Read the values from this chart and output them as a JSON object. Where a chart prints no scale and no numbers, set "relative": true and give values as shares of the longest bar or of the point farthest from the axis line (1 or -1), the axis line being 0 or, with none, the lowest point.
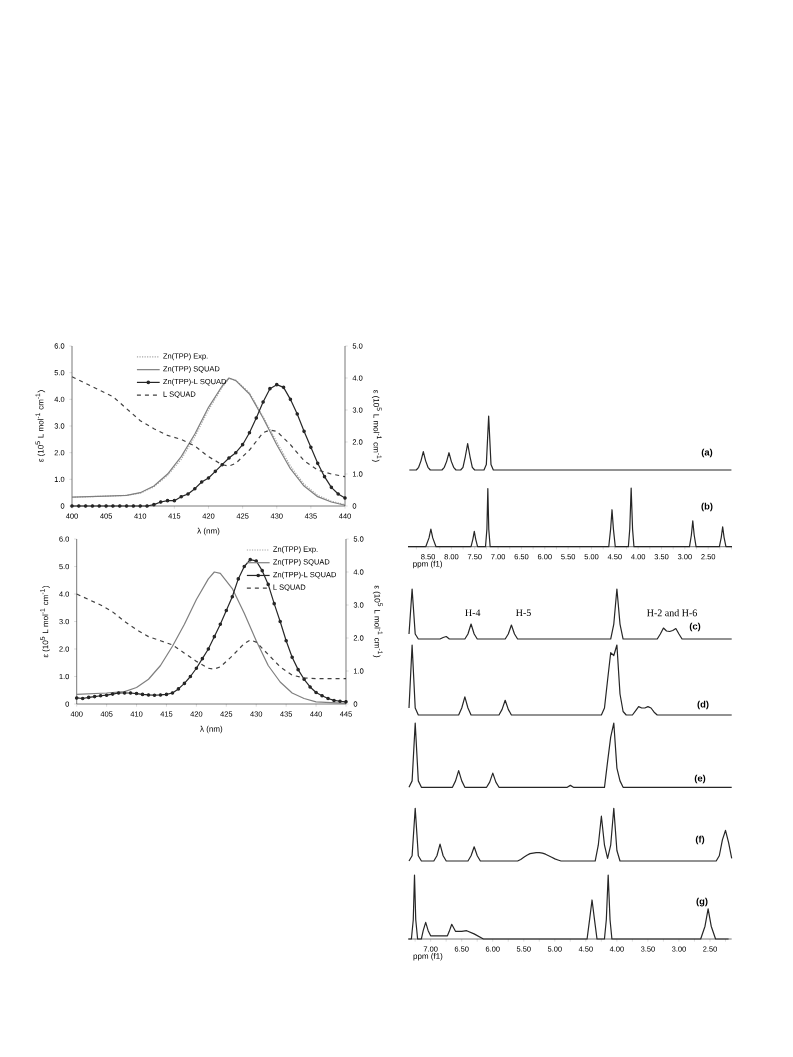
{
  "chart_data": [
    {
      "type": "line",
      "xlabel": "λ (nm)",
      "ylabel": "ε (10$^{5}$ L mol$^{-1}$ cm$^{-1}$)",
      "y2label": "ε (10$^{5}$ L mol$^{-1}$ cm$^{-1}$)",
      "xlim": [
        400,
        440
      ],
      "ylim": [
        0,
        6
      ],
      "y2lim": [
        0,
        5
      ],
      "xticks": [
        400,
        405,
        410,
        415,
        420,
        425,
        430,
        435,
        440
      ],
      "yticks": [
        0,
        {
          "value": 1,
          "label": "1.0"
        },
        {
          "value": 2,
          "label": "2.0"
        },
        {
          "value": 3,
          "label": "3.0"
        },
        {
          "value": 4,
          "label": "4.0"
        },
        {
          "value": 5,
          "label": "5.0"
        },
        {
          "value": 6,
          "label": "6.0"
        }
      ],
      "y2ticks": [
        0,
        {
          "value": 1,
          "label": "1.0"
        },
        {
          "value": 2,
          "label": "2.0"
        },
        {
          "value": 3,
          "label": "3.0"
        },
        {
          "value": 4,
          "label": "4.0"
        },
        {
          "value": 5,
          "label": "5.0"
        }
      ],
      "legend": "top",
      "series": [
        {
          "name": "Zn(TPP) Exp.",
          "color": "#a6a6a6",
          "line_style": "dotted",
          "marker": "none",
          "x": [
            400,
            405,
            408,
            410,
            412,
            414,
            416,
            418,
            420,
            422,
            423,
            424,
            426,
            428,
            430,
            432,
            434,
            436,
            438,
            440
          ],
          "values": [
            0.33,
            0.37,
            0.4,
            0.48,
            0.72,
            1.15,
            1.75,
            2.6,
            3.6,
            4.45,
            4.78,
            4.72,
            4.25,
            3.35,
            2.4,
            1.5,
            0.82,
            0.4,
            0.18,
            0.05
          ]
        },
        {
          "name": "Zn(TPP) SQUAD",
          "color": "#7f7f7f",
          "line_style": "solid",
          "marker": "none",
          "x": [
            400,
            405,
            408,
            410,
            412,
            414,
            416,
            418,
            420,
            422,
            423,
            424,
            426,
            428,
            430,
            432,
            434,
            436,
            438,
            440
          ],
          "values": [
            0.33,
            0.37,
            0.4,
            0.5,
            0.75,
            1.2,
            1.85,
            2.7,
            3.7,
            4.5,
            4.8,
            4.7,
            4.2,
            3.3,
            2.3,
            1.4,
            0.75,
            0.35,
            0.15,
            0.03
          ]
        },
        {
          "name": "Zn(TPP)-L SQUAD",
          "color": "#262626",
          "line_style": "solid",
          "marker": "circle",
          "x": [
            400,
            401,
            402,
            403,
            404,
            405,
            406,
            407,
            408,
            409,
            410,
            411,
            412,
            413,
            414,
            415,
            416,
            417,
            418,
            419,
            420,
            421,
            422,
            423,
            424,
            425,
            426,
            427,
            428,
            429,
            430,
            431,
            432,
            433,
            434,
            435,
            436,
            437,
            438,
            439,
            440
          ],
          "values": [
            0,
            0,
            0,
            0,
            0,
            0,
            0,
            0,
            0,
            0,
            0,
            0,
            0.05,
            0.15,
            0.2,
            0.2,
            0.35,
            0.45,
            0.65,
            0.9,
            1.05,
            1.3,
            1.55,
            1.8,
            2.0,
            2.3,
            2.75,
            3.3,
            3.9,
            4.4,
            4.55,
            4.45,
            4.0,
            3.45,
            2.8,
            2.2,
            1.6,
            1.1,
            0.7,
            0.45,
            0.3
          ]
        },
        {
          "name": "L SQUAD",
          "color": "#404040",
          "line_style": "dashed",
          "marker": "none",
          "x": [
            400,
            402,
            404,
            406,
            408,
            410,
            412,
            414,
            416,
            418,
            420,
            422,
            423,
            424,
            426,
            428,
            429,
            430,
            432,
            434,
            436,
            438,
            440
          ],
          "values": [
            4.85,
            4.6,
            4.35,
            4.1,
            3.65,
            3.2,
            2.9,
            2.65,
            2.5,
            2.25,
            1.85,
            1.55,
            1.5,
            1.6,
            2.1,
            2.75,
            2.85,
            2.8,
            2.3,
            1.7,
            1.35,
            1.2,
            1.1
          ]
        }
      ]
    },
    {
      "type": "line",
      "xlabel": "λ (nm)",
      "ylabel": "ε (10$^{5}$ L mol$^{-1}$ cm$^{-1}$)",
      "y2label": "ε (10$^{5}$ L mol$^{-1}$ cm$^{-1}$)",
      "xlim": [
        400,
        445
      ],
      "ylim": [
        0,
        6
      ],
      "y2lim": [
        0,
        5
      ],
      "xticks": [
        400,
        405,
        410,
        415,
        420,
        425,
        430,
        435,
        440,
        445
      ],
      "yticks": [
        0,
        {
          "value": 1,
          "label": "1.0"
        },
        {
          "value": 2,
          "label": "2.0"
        },
        {
          "value": 3,
          "label": "3.0"
        },
        {
          "value": 4,
          "label": "4.0"
        },
        {
          "value": 5,
          "label": "5.0"
        },
        {
          "value": 6,
          "label": "6.0"
        }
      ],
      "y2ticks": [
        0,
        {
          "value": 1,
          "label": "1.0"
        },
        {
          "value": 2,
          "label": "2.0"
        },
        {
          "value": 3,
          "label": "3.0"
        },
        {
          "value": 4,
          "label": "4.0"
        },
        {
          "value": 5,
          "label": "5.0"
        }
      ],
      "legend": "top right",
      "series": [
        {
          "name": "Zn(TPP) Exp.",
          "color": "#a6a6a6",
          "line_style": "dotted",
          "marker": "none"
        },
        {
          "name": "Zn(TPP) SQUAD",
          "color": "#7f7f7f",
          "line_style": "solid",
          "marker": "none",
          "x": [
            400,
            405,
            408,
            410,
            412,
            414,
            416,
            418,
            420,
            422,
            423,
            424,
            426,
            428,
            430,
            432,
            434,
            436,
            438,
            440,
            445
          ],
          "values": [
            0.35,
            0.4,
            0.45,
            0.6,
            0.9,
            1.4,
            2.1,
            2.9,
            3.8,
            4.55,
            4.8,
            4.75,
            4.2,
            3.3,
            2.3,
            1.4,
            0.8,
            0.4,
            0.2,
            0.08,
            0.02
          ]
        },
        {
          "name": "Zn(TPP)-L SQUAD",
          "color": "#262626",
          "line_style": "solid",
          "marker": "circle",
          "x": [
            400,
            401,
            402,
            403,
            404,
            405,
            406,
            407,
            408,
            409,
            410,
            411,
            412,
            413,
            414,
            415,
            416,
            417,
            418,
            419,
            420,
            421,
            422,
            423,
            424,
            425,
            426,
            427,
            428,
            429,
            430,
            431,
            432,
            433,
            434,
            435,
            436,
            437,
            438,
            439,
            440,
            441,
            442,
            443,
            444,
            445
          ],
          "values": [
            0.22,
            0.2,
            0.24,
            0.27,
            0.3,
            0.32,
            0.36,
            0.4,
            0.4,
            0.4,
            0.38,
            0.35,
            0.33,
            0.32,
            0.33,
            0.35,
            0.4,
            0.55,
            0.75,
            1.0,
            1.3,
            1.65,
            2.0,
            2.45,
            2.9,
            3.4,
            3.9,
            4.55,
            5.0,
            5.25,
            5.2,
            4.85,
            4.35,
            3.65,
            3.0,
            2.3,
            1.7,
            1.25,
            0.9,
            0.62,
            0.42,
            0.3,
            0.2,
            0.13,
            0.1,
            0.08
          ]
        },
        {
          "name": "L SQUAD",
          "color": "#404040",
          "line_style": "dashed",
          "marker": "none",
          "x": [
            400,
            402,
            404,
            406,
            408,
            410,
            412,
            414,
            416,
            418,
            420,
            422,
            423,
            424,
            426,
            428,
            429,
            430,
            432,
            434,
            436,
            438,
            440,
            442,
            445
          ],
          "values": [
            4.0,
            3.8,
            3.6,
            3.35,
            3.0,
            2.7,
            2.45,
            2.3,
            2.15,
            1.85,
            1.55,
            1.3,
            1.27,
            1.35,
            1.75,
            2.2,
            2.33,
            2.25,
            1.8,
            1.35,
            1.05,
            0.95,
            0.92,
            0.92,
            0.92
          ]
        }
      ]
    },
    {
      "type": "line",
      "title": "(a)",
      "relative": true,
      "tick_labels": false,
      "categories": [
        null,
        null,
        null,
        null,
        null,
        null,
        null,
        null,
        null,
        null,
        null,
        null,
        null,
        null,
        null,
        null,
        null,
        null,
        null,
        null,
        null,
        null,
        null,
        null,
        null,
        null,
        null,
        null,
        null,
        null,
        null,
        null,
        null,
        null,
        null,
        null,
        null,
        null,
        null,
        null,
        null,
        null,
        null,
        null,
        null,
        null,
        null,
        null,
        null,
        null,
        null,
        null,
        null,
        null,
        null,
        null,
        null,
        null,
        null,
        null,
        null,
        null,
        null,
        null,
        null,
        null,
        null,
        null,
        null,
        null,
        null,
        null,
        null,
        null,
        null,
        null,
        null,
        null,
        null,
        null,
        null,
        null,
        null,
        null,
        null,
        null,
        null,
        null,
        null,
        null,
        null,
        null,
        null,
        null,
        null,
        null,
        null,
        null,
        null,
        null,
        null,
        null,
        null,
        null,
        null,
        null,
        null,
        null,
        null,
        null,
        null,
        null,
        null,
        null,
        null,
        null,
        null,
        null,
        null,
        null,
        null,
        null,
        null,
        null,
        null,
        null,
        null,
        null,
        null,
        null,
        null,
        null,
        null,
        null,
        null,
        null,
        null,
        null,
        null
      ],
      "series": [
        {
          "color": "#262626",
          "values": [
            0,
            0,
            0,
            0,
            0.05,
            0.17,
            0.34,
            0.17,
            0.05,
            0,
            0,
            0,
            0,
            0,
            0,
            0.05,
            0.16,
            0.32,
            0.16,
            0.05,
            0,
            0,
            0,
            0.05,
            0.25,
            0.49,
            0.25,
            0.05,
            0,
            0,
            0,
            0,
            0,
            0.1,
            1,
            0.1,
            0,
            0,
            0,
            0,
            0,
            0,
            0,
            0,
            0,
            0,
            0,
            0,
            0,
            0,
            0,
            0,
            0,
            0,
            0,
            0,
            0,
            0,
            0,
            0,
            0,
            0,
            0,
            0,
            0,
            0,
            0,
            0,
            0,
            0,
            0,
            0,
            0,
            0,
            0,
            0,
            0,
            0,
            0,
            0,
            0,
            0,
            0,
            0,
            0,
            0,
            0,
            0,
            0,
            0,
            0,
            0,
            0,
            0,
            0,
            0,
            0,
            0,
            0,
            0,
            0,
            0,
            0,
            0,
            0,
            0,
            0,
            0,
            0,
            0,
            0,
            0,
            0,
            0,
            0,
            0,
            0,
            0,
            0,
            0,
            0,
            0,
            0,
            0,
            0,
            0,
            0,
            0,
            0,
            0,
            0,
            0,
            0,
            0,
            0,
            0,
            0,
            0,
            0
          ]
        }
      ]
    },
    {
      "type": "line",
      "title": "(b)",
      "relative": true,
      "tick_labels": "x",
      "xlabel": "ppm (f1)",
      "xlim": [
        8.93,
        1.99
      ],
      "xticks": [
        {
          "value": 8.75,
          "label": null
        },
        {
          "value": 8.5,
          "label": "8.50"
        },
        {
          "value": 8.25,
          "label": null
        },
        {
          "value": 8.0,
          "label": "8.00"
        },
        {
          "value": 7.75,
          "label": null
        },
        {
          "value": 7.5,
          "label": "7.50"
        },
        {
          "value": 7.25,
          "label": null
        },
        {
          "value": 7.0,
          "label": "7.00"
        },
        {
          "value": 6.75,
          "label": null
        },
        {
          "value": 6.5,
          "label": "6.50"
        },
        {
          "value": 6.25,
          "label": null
        },
        {
          "value": 6.0,
          "label": "6.00"
        },
        {
          "value": 5.75,
          "label": null
        },
        {
          "value": 5.5,
          "label": "5.50"
        },
        {
          "value": 5.25,
          "label": null
        },
        {
          "value": 5.0,
          "label": "5.00"
        },
        {
          "value": 4.75,
          "label": null
        },
        {
          "value": 4.5,
          "label": "4.50"
        },
        {
          "value": 4.25,
          "label": null
        },
        {
          "value": 4.0,
          "label": "4.00"
        },
        {
          "value": 3.75,
          "label": null
        },
        {
          "value": 3.5,
          "label": "3.50"
        },
        {
          "value": 3.25,
          "label": null
        },
        {
          "value": 3.0,
          "label": "3.00"
        },
        {
          "value": 2.75,
          "label": null
        },
        {
          "value": 2.5,
          "label": "2.50"
        },
        {
          "value": 2.25,
          "label": null
        },
        {
          "value": 2.0,
          "label": null
        }
      ],
      "series": [
        {
          "color": "#262626",
          "x": [
            8.93,
            8.55,
            8.48,
            8.44,
            8.4,
            8.33,
            7.58,
            7.54,
            7.51,
            7.48,
            7.44,
            7.27,
            7.24,
            7.22,
            7.2,
            7.17,
            4.63,
            4.59,
            4.56,
            4.53,
            4.49,
            4.21,
            4.18,
            4.15,
            4.12,
            4.09,
            2.9,
            2.86,
            2.83,
            2.8,
            2.76,
            2.26,
            2.22,
            2.19,
            2.16,
            2.12,
            1.99
          ],
          "values": [
            0,
            0,
            0.15,
            0.3,
            0.15,
            0,
            0,
            0.13,
            0.26,
            0.13,
            0,
            0,
            0.3,
            0.99,
            0.3,
            0,
            0,
            0.3,
            0.63,
            0.3,
            0,
            0,
            0.3,
            1,
            0.3,
            0,
            0,
            0.2,
            0.44,
            0.2,
            0,
            0,
            0.16,
            0.34,
            0.16,
            0,
            0
          ]
        }
      ]
    },
    {
      "type": "line",
      "title": "(c)",
      "relative": true,
      "tick_labels": false,
      "annotations": [
        "H-4",
        "H-5",
        "H-2 and H-6"
      ],
      "categories": [
        null,
        null,
        null,
        null,
        null,
        null,
        null,
        null,
        null,
        null,
        null,
        null,
        null,
        null,
        null,
        null,
        null,
        null,
        null,
        null,
        null,
        null,
        null,
        null,
        null,
        null,
        null,
        null,
        null,
        null,
        null,
        null,
        null,
        null,
        null,
        null,
        null,
        null,
        null,
        null,
        null,
        null,
        null,
        null,
        null,
        null,
        null,
        null,
        null,
        null,
        null,
        null,
        null,
        null,
        null,
        null,
        null,
        null,
        null,
        null,
        null,
        null,
        null,
        null,
        null,
        null,
        null,
        null,
        null,
        null,
        null,
        null,
        null,
        null,
        null,
        null,
        null,
        null,
        null,
        null,
        null,
        null,
        null,
        null,
        null,
        null,
        null,
        null,
        null,
        null,
        null,
        null,
        null,
        null,
        null,
        null,
        null,
        null,
        null,
        null,
        null,
        null,
        null,
        null,
        null
      ],
      "series": [
        {
          "color": "#262626",
          "values": [
            0.1,
            1,
            0.1,
            0,
            0,
            0,
            0,
            0,
            0,
            0,
            0,
            0.03,
            0.05,
            0,
            0,
            0,
            0,
            0,
            0,
            0.1,
            0.3,
            0.1,
            0,
            0,
            0,
            0,
            0,
            0,
            0,
            0,
            0,
            0,
            0.1,
            0.28,
            0.1,
            0,
            0,
            0,
            0,
            0,
            0,
            0,
            0,
            0,
            0,
            0,
            0,
            0,
            0,
            0,
            0,
            0,
            0,
            0,
            0,
            0,
            0,
            0,
            0,
            0,
            0,
            0,
            0,
            0,
            0,
            0,
            0.3,
            1,
            0.3,
            0,
            0,
            0,
            0,
            0,
            0,
            0,
            0,
            0,
            0,
            0,
            0,
            0.1,
            0.22,
            0.16,
            0.15,
            0.17,
            0.21,
            0.1,
            0,
            0,
            0,
            0,
            0,
            0,
            0,
            0,
            0,
            0,
            0,
            0,
            0,
            0,
            0,
            0,
            0
          ]
        }
      ]
    },
    {
      "type": "line",
      "title": "(d)",
      "relative": true,
      "tick_labels": false,
      "categories": [
        null,
        null,
        null,
        null,
        null,
        null,
        null,
        null,
        null,
        null,
        null,
        null,
        null,
        null,
        null,
        null,
        null,
        null,
        null,
        null,
        null,
        null,
        null,
        null,
        null,
        null,
        null,
        null,
        null,
        null,
        null,
        null,
        null,
        null,
        null,
        null,
        null,
        null,
        null,
        null,
        null,
        null,
        null,
        null,
        null,
        null,
        null,
        null,
        null,
        null,
        null,
        null,
        null,
        null,
        null,
        null,
        null,
        null,
        null,
        null,
        null,
        null,
        null,
        null,
        null,
        null,
        null,
        null,
        null,
        null,
        null,
        null,
        null,
        null,
        null,
        null,
        null,
        null,
        null,
        null,
        null,
        null,
        null,
        null,
        null,
        null,
        null,
        null,
        null,
        null,
        null,
        null,
        null,
        null,
        null,
        null,
        null,
        null,
        null,
        null,
        null,
        null,
        null,
        null,
        null
      ],
      "series": [
        {
          "color": "#262626",
          "values": [
            0.1,
            1,
            0.1,
            0,
            0,
            0,
            0,
            0,
            0,
            0,
            0,
            0,
            0,
            0,
            0,
            0,
            0,
            0.1,
            0.26,
            0.1,
            0,
            0,
            0,
            0,
            0,
            0,
            0,
            0,
            0,
            0,
            0.08,
            0.21,
            0.08,
            0,
            0,
            0,
            0,
            0,
            0,
            0,
            0,
            0,
            0,
            0,
            0,
            0,
            0,
            0,
            0,
            0,
            0,
            0,
            0,
            0,
            0,
            0,
            0,
            0,
            0,
            0,
            0,
            0,
            0,
            0.1,
            0.5,
            0.89,
            0.85,
            1,
            0.3,
            0.05,
            0,
            0,
            0,
            0.06,
            0.12,
            0.1,
            0.1,
            0.12,
            0.1,
            0.04,
            0,
            0,
            0,
            0,
            0,
            0,
            0,
            0,
            0,
            0,
            0,
            0,
            0,
            0,
            0,
            0,
            0,
            0,
            0,
            0,
            0,
            0,
            0,
            0,
            0
          ]
        }
      ]
    },
    {
      "type": "line",
      "title": "(e)",
      "relative": true,
      "tick_labels": false,
      "categories": [
        null,
        null,
        null,
        null,
        null,
        null,
        null,
        null,
        null,
        null,
        null,
        null,
        null,
        null,
        null,
        null,
        null,
        null,
        null,
        null,
        null,
        null,
        null,
        null,
        null,
        null,
        null,
        null,
        null,
        null,
        null,
        null,
        null,
        null,
        null,
        null,
        null,
        null,
        null,
        null,
        null,
        null,
        null,
        null,
        null,
        null,
        null,
        null,
        null,
        null,
        null,
        null,
        null,
        null,
        null,
        null,
        null,
        null,
        null,
        null,
        null,
        null,
        null,
        null,
        null,
        null,
        null,
        null,
        null,
        null,
        null,
        null,
        null,
        null,
        null,
        null,
        null,
        null,
        null,
        null,
        null,
        null,
        null,
        null,
        null,
        null,
        null,
        null,
        null,
        null,
        null,
        null,
        null,
        null,
        null,
        null,
        null,
        null,
        null,
        null,
        null,
        null,
        null,
        null,
        null
      ],
      "series": [
        {
          "color": "#262626",
          "values": [
            0,
            0.1,
            1,
            0.1,
            0,
            0,
            0,
            0,
            0,
            0,
            0,
            0,
            0,
            0,
            0,
            0.1,
            0.26,
            0.1,
            0,
            0,
            0,
            0,
            0,
            0,
            0,
            0,
            0.08,
            0.22,
            0.08,
            0,
            0,
            0,
            0,
            0,
            0,
            0,
            0,
            0,
            0,
            0,
            0,
            0,
            0,
            0,
            0,
            0,
            0,
            0,
            0,
            0,
            0,
            0,
            0.03,
            0,
            0,
            0,
            0,
            0,
            0,
            0,
            0,
            0,
            0,
            0,
            0.4,
            0.78,
            1,
            0.3,
            0.1,
            0,
            0,
            0,
            0,
            0,
            0,
            0,
            0,
            0,
            0,
            0,
            0,
            0,
            0,
            0,
            0,
            0,
            0,
            0,
            0,
            0,
            0,
            0,
            0,
            0,
            0,
            0,
            0,
            0,
            0,
            0,
            0,
            0,
            0,
            0,
            0
          ]
        }
      ]
    },
    {
      "type": "line",
      "title": "(f)",
      "relative": true,
      "tick_labels": false,
      "categories": [
        null,
        null,
        null,
        null,
        null,
        null,
        null,
        null,
        null,
        null,
        null,
        null,
        null,
        null,
        null,
        null,
        null,
        null,
        null,
        null,
        null,
        null,
        null,
        null,
        null,
        null,
        null,
        null,
        null,
        null,
        null,
        null,
        null,
        null,
        null,
        null,
        null,
        null,
        null,
        null,
        null,
        null,
        null,
        null,
        null,
        null,
        null,
        null,
        null,
        null,
        null,
        null,
        null,
        null,
        null,
        null,
        null,
        null,
        null,
        null,
        null,
        null,
        null,
        null,
        null,
        null,
        null,
        null,
        null,
        null,
        null,
        null,
        null,
        null,
        null,
        null,
        null,
        null,
        null,
        null,
        null,
        null,
        null,
        null,
        null,
        null,
        null,
        null,
        null,
        null,
        null,
        null,
        null,
        null,
        null,
        null,
        null,
        null,
        null,
        null,
        null,
        null,
        null,
        null,
        null
      ],
      "series": [
        {
          "color": "#262626",
          "values": [
            0,
            0.1,
            1,
            0.1,
            0,
            0,
            0,
            0,
            0,
            0.1,
            0.32,
            0.1,
            0,
            0,
            0,
            0,
            0,
            0,
            0,
            0,
            0.1,
            0.27,
            0.1,
            0,
            0,
            0,
            0,
            0,
            0,
            0,
            0,
            0,
            0,
            0,
            0,
            0,
            0.03,
            0.07,
            0.11,
            0.14,
            0.15,
            0.16,
            0.16,
            0.15,
            0.13,
            0.1,
            0.07,
            0.04,
            0.02,
            0,
            0,
            0,
            0,
            0,
            0,
            0,
            0,
            0,
            0,
            0,
            0,
            0.3,
            0.85,
            0.3,
            0.05,
            0.3,
            1,
            0.2,
            0,
            0,
            0,
            0,
            0,
            0,
            0,
            0,
            0,
            0,
            0,
            0,
            0,
            0,
            0,
            0,
            0,
            0,
            0,
            0,
            0,
            0,
            0,
            0,
            0,
            0,
            0,
            0,
            0,
            0,
            0,
            0,
            0.1,
            0.4,
            0.58,
            0.35,
            0.05
          ]
        }
      ]
    },
    {
      "type": "line",
      "title": "(g)",
      "relative": true,
      "tick_labels": "x",
      "xlabel": "ppm (f1)",
      "xlim": [
        7.36,
        2.15
      ],
      "xticks": [
        {
          "value": 7.25,
          "label": null
        },
        {
          "value": 7.0,
          "label": "7.00"
        },
        {
          "value": 6.75,
          "label": null
        },
        {
          "value": 6.5,
          "label": "6.50"
        },
        {
          "value": 6.25,
          "label": null
        },
        {
          "value": 6.0,
          "label": "6.00"
        },
        {
          "value": 5.75,
          "label": null
        },
        {
          "value": 5.5,
          "label": "5.50"
        },
        {
          "value": 5.25,
          "label": null
        },
        {
          "value": 5.0,
          "label": "5.00"
        },
        {
          "value": 4.75,
          "label": null
        },
        {
          "value": 4.5,
          "label": "4.50"
        },
        {
          "value": 4.25,
          "label": null
        },
        {
          "value": 4.0,
          "label": "4.00"
        },
        {
          "value": 3.75,
          "label": null
        },
        {
          "value": 3.5,
          "label": "3.50"
        },
        {
          "value": 3.25,
          "label": null
        },
        {
          "value": 3.0,
          "label": "3.00"
        },
        {
          "value": 2.75,
          "label": null
        },
        {
          "value": 2.5,
          "label": "2.50"
        },
        {
          "value": 2.25,
          "label": null
        }
      ],
      "series": [
        {
          "color": "#262626",
          "x": [
            7.36,
            7.31,
            7.28,
            7.26,
            7.24,
            7.21,
            7.15,
            7.12,
            7.08,
            7.04,
            7.0,
            6.73,
            6.7,
            6.66,
            6.6,
            6.5,
            6.42,
            6.3,
            6.15,
            4.48,
            4.44,
            4.4,
            4.36,
            4.32,
            4.2,
            4.17,
            4.14,
            4.11,
            4.08,
            2.65,
            2.58,
            2.53,
            2.48,
            2.41,
            2.2
          ],
          "values": [
            0,
            0,
            0.3,
            1,
            0.3,
            0,
            0,
            0.13,
            0.26,
            0.13,
            0.05,
            0.05,
            0.12,
            0.23,
            0.12,
            0.12,
            0.13,
            0.08,
            0,
            0,
            0.3,
            0.61,
            0.3,
            0,
            0,
            0.3,
            1,
            0.3,
            0,
            0,
            0.2,
            0.47,
            0.2,
            0,
            0
          ]
        }
      ]
    }
  ]
}
